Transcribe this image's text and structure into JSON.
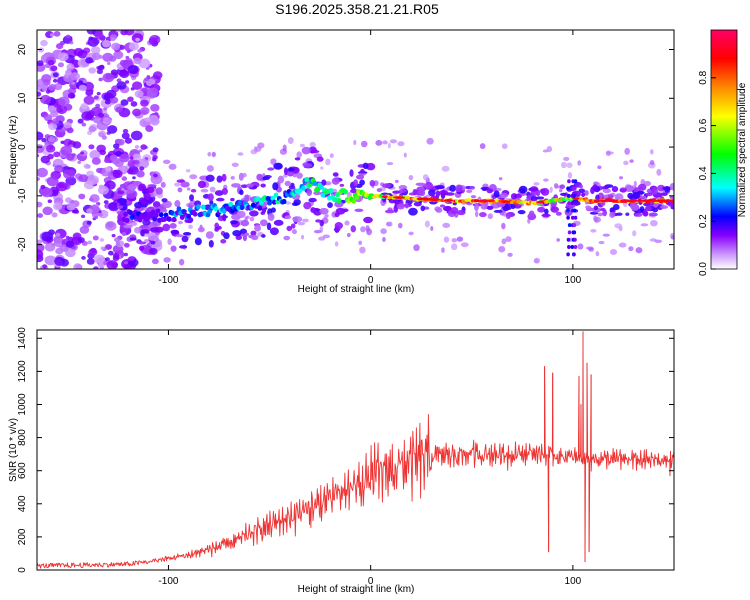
{
  "chart_data": [
    {
      "type": "heatmap",
      "title": "S196.2025.358.21.21.R05",
      "xlabel": "Height of straight line (km)",
      "ylabel": "Frequency (Hz)",
      "xlim": [
        -165,
        150
      ],
      "ylim": [
        -25,
        24
      ],
      "xticks": [
        -100,
        0,
        100
      ],
      "yticks": [
        20,
        10,
        0,
        -10,
        -20
      ],
      "colorbar": {
        "label": "Normalized spectral amplitude",
        "range": [
          0,
          1
        ],
        "ticks": [
          0.0,
          0.2,
          0.4,
          0.6,
          0.8
        ],
        "tick_labels": [
          "0.0",
          "0.2",
          "0.4",
          "0.6",
          "0.8"
        ],
        "colors": [
          "#ffffff",
          "#cc99ff",
          "#8800ff",
          "#0000ff",
          "#00ffff",
          "#00ff00",
          "#ffff00",
          "#ff8800",
          "#ff0000",
          "#ff0066"
        ]
      },
      "ridge": {
        "description": "dominant frequency band vs height",
        "x": [
          -120,
          -100,
          -80,
          -60,
          -40,
          -30,
          -20,
          0,
          20,
          40,
          60,
          80,
          90,
          100,
          110,
          130,
          150
        ],
        "y": [
          -14,
          -14,
          -13,
          -12,
          -10,
          -7,
          -10,
          -10,
          -10.5,
          -11,
          -11,
          -11.5,
          -11,
          -10.5,
          -11,
          -11,
          -11
        ],
        "amplitude": [
          0.25,
          0.3,
          0.35,
          0.4,
          0.45,
          0.5,
          0.55,
          0.7,
          0.85,
          0.9,
          0.9,
          0.85,
          0.8,
          0.7,
          0.95,
          0.95,
          0.95
        ]
      }
    },
    {
      "type": "line",
      "title": "",
      "xlabel": "Height of straight line (km)",
      "ylabel": "SNR (10 * v/v)",
      "xlim": [
        -165,
        150
      ],
      "ylim": [
        0,
        1450
      ],
      "xticks": [
        -100,
        0,
        100
      ],
      "yticks": [
        0,
        200,
        400,
        600,
        800,
        1000,
        1200,
        1400
      ],
      "color": "#ee3333",
      "trend": {
        "x": [
          -165,
          -140,
          -120,
          -110,
          -90,
          -70,
          -50,
          -30,
          -15,
          0,
          10,
          20,
          30,
          50,
          70,
          80,
          90,
          100,
          110,
          120,
          150
        ],
        "y": [
          25,
          30,
          35,
          50,
          90,
          160,
          270,
          370,
          460,
          560,
          610,
          650,
          690,
          700,
          700,
          710,
          690,
          680,
          670,
          670,
          660
        ]
      },
      "spikes": [
        {
          "x": 86,
          "y": 1230
        },
        {
          "x": 88,
          "y": 110
        },
        {
          "x": 90,
          "y": 1190
        },
        {
          "x": 103,
          "y": 1170
        },
        {
          "x": 104,
          "y": 1000
        },
        {
          "x": 105,
          "y": 1440
        },
        {
          "x": 106,
          "y": 50
        },
        {
          "x": 107,
          "y": 1250
        },
        {
          "x": 108,
          "y": 110
        },
        {
          "x": 109,
          "y": 1180
        },
        {
          "x": 148,
          "y": 570
        }
      ]
    }
  ]
}
